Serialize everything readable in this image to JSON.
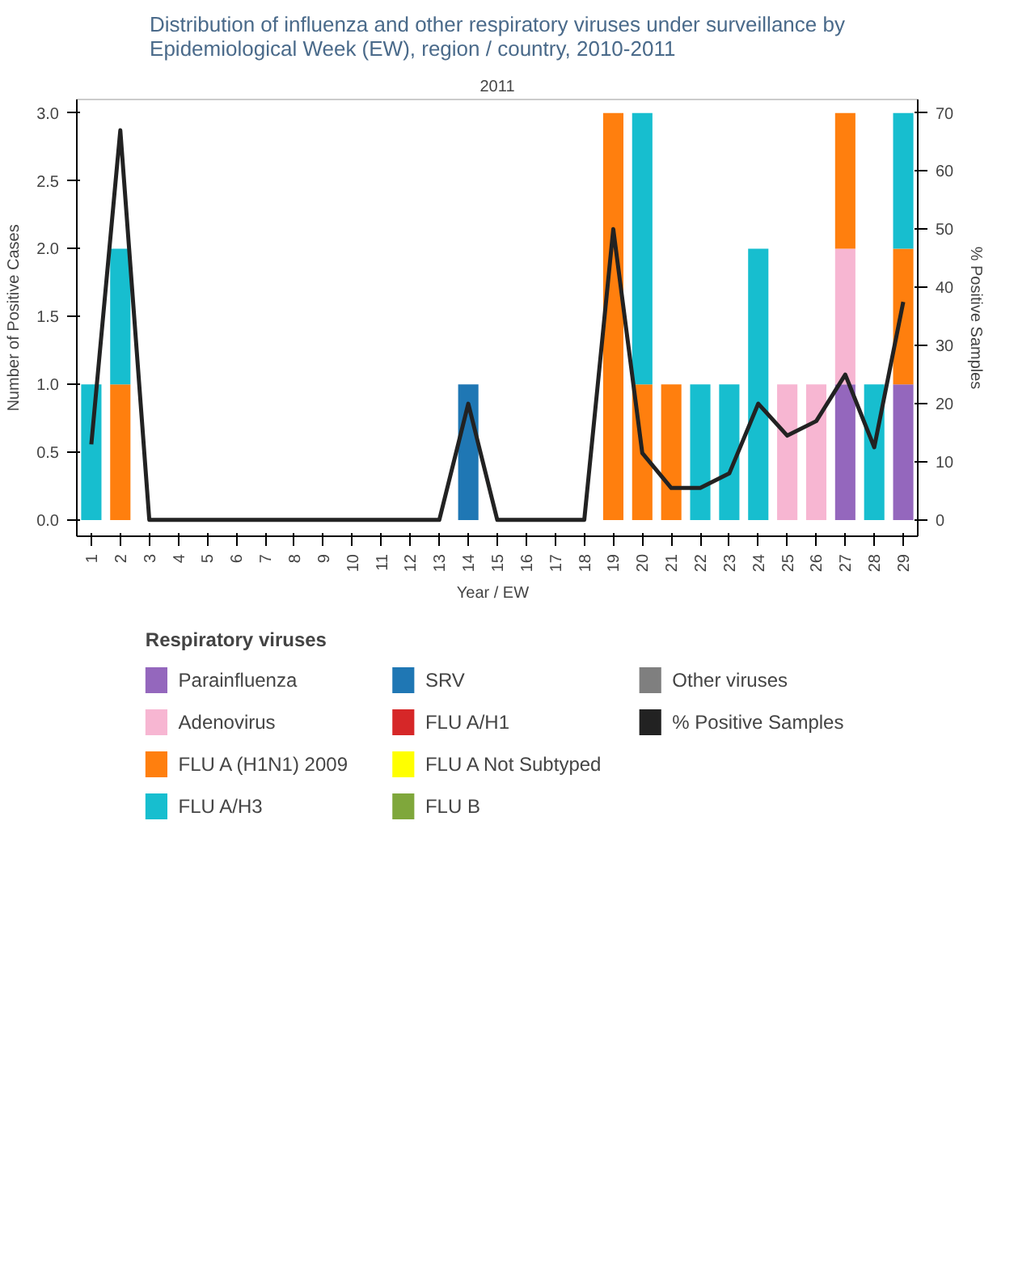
{
  "chart_data": {
    "type": "bar",
    "title": "Distribution of influenza and other respiratory viruses under surveillance by Epidemiological Week (EW), region / country, 2010-2011",
    "xlabel": "Year  /  EW",
    "ylabel": "Number of Positive Cases",
    "y2label": "% Positive Samples",
    "legend_title": "Respiratory viruses",
    "annotations": [
      "2011"
    ],
    "categories": [
      "1",
      "2",
      "3",
      "4",
      "5",
      "6",
      "7",
      "8",
      "9",
      "10",
      "11",
      "12",
      "13",
      "14",
      "15",
      "16",
      "17",
      "18",
      "19",
      "20",
      "21",
      "22",
      "23",
      "24",
      "25",
      "26",
      "27",
      "28",
      "29"
    ],
    "stacked": true,
    "series": [
      {
        "name": "Parainfluenza",
        "color": "#9467bd",
        "values": [
          null,
          null,
          null,
          null,
          null,
          null,
          null,
          null,
          null,
          null,
          null,
          null,
          null,
          null,
          null,
          null,
          null,
          null,
          null,
          null,
          null,
          null,
          null,
          null,
          null,
          null,
          1,
          null,
          1
        ]
      },
      {
        "name": "Adenovirus",
        "color": "#f7b6d2",
        "values": [
          null,
          null,
          null,
          null,
          null,
          null,
          null,
          null,
          null,
          null,
          null,
          null,
          null,
          null,
          null,
          null,
          null,
          null,
          null,
          null,
          null,
          null,
          null,
          null,
          1,
          1,
          1,
          null,
          null
        ]
      },
      {
        "name": "FLU A (H1N1) 2009",
        "color": "#ff7f0e",
        "values": [
          null,
          1,
          null,
          null,
          null,
          null,
          null,
          null,
          null,
          null,
          null,
          null,
          null,
          null,
          null,
          null,
          null,
          null,
          3,
          1,
          1,
          null,
          null,
          null,
          null,
          null,
          1,
          null,
          1
        ]
      },
      {
        "name": "FLU A/H3",
        "color": "#17becf",
        "values": [
          1,
          1,
          null,
          null,
          null,
          null,
          null,
          null,
          null,
          null,
          null,
          null,
          null,
          null,
          null,
          null,
          null,
          null,
          null,
          2,
          null,
          1,
          1,
          2,
          null,
          null,
          null,
          1,
          1
        ]
      },
      {
        "name": "SRV",
        "color": "#1f77b4",
        "values": [
          null,
          null,
          null,
          null,
          null,
          null,
          null,
          null,
          null,
          null,
          null,
          null,
          null,
          1,
          null,
          null,
          null,
          null,
          null,
          null,
          null,
          null,
          null,
          null,
          null,
          null,
          null,
          null,
          null
        ]
      },
      {
        "name": "FLU A/H1",
        "color": "#d62728",
        "values": [
          null,
          null,
          null,
          null,
          null,
          null,
          null,
          null,
          null,
          null,
          null,
          null,
          null,
          null,
          null,
          null,
          null,
          null,
          null,
          null,
          null,
          null,
          null,
          null,
          null,
          null,
          null,
          null,
          null
        ]
      },
      {
        "name": "FLU A Not Subtyped",
        "color": "#ffff00",
        "values": [
          null,
          null,
          null,
          null,
          null,
          null,
          null,
          null,
          null,
          null,
          null,
          null,
          null,
          null,
          null,
          null,
          null,
          null,
          null,
          null,
          null,
          null,
          null,
          null,
          null,
          null,
          null,
          null,
          null
        ]
      },
      {
        "name": "FLU B",
        "color": "#7fa73b",
        "values": [
          null,
          null,
          null,
          null,
          null,
          null,
          null,
          null,
          null,
          null,
          null,
          null,
          null,
          null,
          null,
          null,
          null,
          null,
          null,
          null,
          null,
          null,
          null,
          null,
          null,
          null,
          null,
          null,
          null
        ]
      },
      {
        "name": "Other viruses",
        "color": "#7f7f7f",
        "values": [
          null,
          null,
          null,
          null,
          null,
          null,
          null,
          null,
          null,
          null,
          null,
          null,
          null,
          null,
          null,
          null,
          null,
          null,
          null,
          null,
          null,
          null,
          null,
          null,
          null,
          null,
          null,
          null,
          null
        ]
      },
      {
        "name": "% Positive Samples",
        "type": "line",
        "axis": "y2",
        "color": "#222222",
        "values": [
          13,
          67,
          0,
          0,
          0,
          0,
          0,
          0,
          0,
          0,
          0,
          0,
          0,
          20,
          0,
          0,
          0,
          0,
          50,
          11.5,
          5.5,
          5.5,
          8,
          20,
          14.5,
          17,
          25,
          12.5,
          37.5
        ]
      }
    ],
    "ylim": [
      -0.12,
      3.1
    ],
    "yticks": [
      {
        "value": 0,
        "label": "0.0"
      },
      {
        "value": 0.5,
        "label": "0.5"
      },
      {
        "value": 1,
        "label": "1.0"
      },
      {
        "value": 1.5,
        "label": "1.5"
      },
      {
        "value": 2,
        "label": "2.0"
      },
      {
        "value": 2.5,
        "label": "2.5"
      },
      {
        "value": 3,
        "label": "3.0"
      }
    ],
    "y2lim": [
      -2.8,
      72.3
    ],
    "y2ticks": [
      0,
      10,
      20,
      30,
      40,
      50,
      60,
      70
    ],
    "grid": false,
    "legend": "bottom"
  }
}
